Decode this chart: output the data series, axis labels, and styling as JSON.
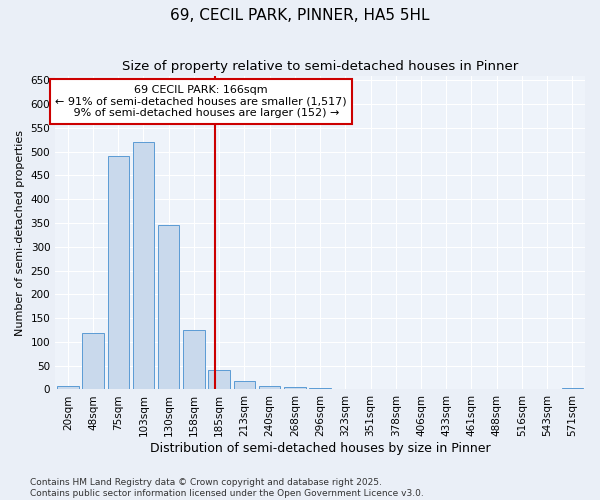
{
  "title1": "69, CECIL PARK, PINNER, HA5 5HL",
  "title2": "Size of property relative to semi-detached houses in Pinner",
  "xlabel": "Distribution of semi-detached houses by size in Pinner",
  "ylabel": "Number of semi-detached properties",
  "categories": [
    "20sqm",
    "48sqm",
    "75sqm",
    "103sqm",
    "130sqm",
    "158sqm",
    "185sqm",
    "213sqm",
    "240sqm",
    "268sqm",
    "296sqm",
    "323sqm",
    "351sqm",
    "378sqm",
    "406sqm",
    "433sqm",
    "461sqm",
    "488sqm",
    "516sqm",
    "543sqm",
    "571sqm"
  ],
  "values": [
    8,
    118,
    490,
    520,
    345,
    125,
    40,
    18,
    7,
    5,
    3,
    1,
    1,
    1,
    0,
    0,
    0,
    0,
    0,
    0,
    3
  ],
  "bar_color": "#c9d9ec",
  "bar_edge_color": "#5b9bd5",
  "vline_x": 5.82,
  "vline_color": "#cc0000",
  "annotation_line1": "69 CECIL PARK: 166sqm",
  "annotation_line2": "← 91% of semi-detached houses are smaller (1,517)",
  "annotation_line3": "   9% of semi-detached houses are larger (152) →",
  "annotation_box_color": "#cc0000",
  "ylim": [
    0,
    660
  ],
  "yticks": [
    0,
    50,
    100,
    150,
    200,
    250,
    300,
    350,
    400,
    450,
    500,
    550,
    600,
    650
  ],
  "footnote": "Contains HM Land Registry data © Crown copyright and database right 2025.\nContains public sector information licensed under the Open Government Licence v3.0.",
  "bg_color": "#eaeff7",
  "plot_bg_color": "#eef3fa",
  "title1_fontsize": 11,
  "title2_fontsize": 9.5,
  "xlabel_fontsize": 9,
  "ylabel_fontsize": 8,
  "tick_fontsize": 7.5,
  "annotation_fontsize": 8,
  "footnote_fontsize": 6.5
}
